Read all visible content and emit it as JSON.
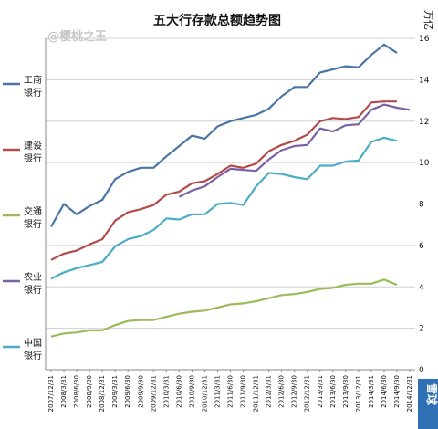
{
  "chart_data": {
    "type": "line",
    "title": "五大行存款总额趋势图",
    "unit": "万亿",
    "ylim": [
      0,
      16
    ],
    "yticks": [
      0,
      2,
      4,
      6,
      8,
      10,
      12,
      14,
      16
    ],
    "grid": true,
    "legend_position": "left",
    "x": [
      "2007/12/31",
      "2008/3/31",
      "2008/6/30",
      "2008/9/30",
      "2008/12/31",
      "2009/3/31",
      "2009/6/30",
      "2009/9/30",
      "2009/12/31",
      "2010/3/31",
      "2010/6/30",
      "2010/9/30",
      "2010/12/31",
      "2011/3/31",
      "2011/6/30",
      "2011/9/30",
      "2011/12/31",
      "2012/3/31",
      "2012/6/30",
      "2012/9/30",
      "2012/12/31",
      "2013/3/31",
      "2013/6/30",
      "2013/9/30",
      "2013/12/31",
      "2014/3/31",
      "2014/6/30",
      "2014/9/30",
      "2014/12/31"
    ],
    "series": [
      {
        "name": "工商\n银行",
        "color": "#4a75a8",
        "values": [
          6.9,
          8.0,
          7.5,
          7.9,
          8.2,
          9.2,
          9.55,
          9.75,
          9.75,
          10.3,
          10.8,
          11.3,
          11.15,
          11.75,
          12.0,
          12.15,
          12.3,
          12.6,
          13.2,
          13.65,
          13.65,
          14.35,
          14.5,
          14.65,
          14.6,
          15.2,
          15.7,
          15.3,
          null
        ]
      },
      {
        "name": "建设\n银行",
        "color": "#b24b4a",
        "values": [
          5.3,
          5.6,
          5.75,
          6.05,
          6.3,
          7.2,
          7.6,
          7.75,
          7.95,
          8.45,
          8.6,
          9.0,
          9.1,
          9.45,
          9.85,
          9.75,
          9.95,
          10.55,
          10.85,
          11.05,
          11.35,
          12.0,
          12.15,
          12.1,
          12.2,
          12.9,
          12.95,
          12.95,
          null
        ]
      },
      {
        "name": "交通\n银行",
        "color": "#9bbb59",
        "values": [
          1.6,
          1.75,
          1.8,
          1.9,
          1.9,
          2.15,
          2.35,
          2.4,
          2.4,
          2.55,
          2.7,
          2.8,
          2.85,
          3.0,
          3.15,
          3.2,
          3.3,
          3.45,
          3.6,
          3.65,
          3.75,
          3.9,
          3.95,
          4.1,
          4.15,
          4.15,
          4.35,
          4.1,
          null
        ]
      },
      {
        "name": "农业\n银行",
        "color": "#7b62a3",
        "values": [
          null,
          null,
          null,
          null,
          null,
          null,
          null,
          null,
          null,
          null,
          8.35,
          8.65,
          8.85,
          9.3,
          9.7,
          9.65,
          9.6,
          10.15,
          10.6,
          10.8,
          10.85,
          11.65,
          11.5,
          11.8,
          11.85,
          12.55,
          12.8,
          12.65,
          12.55
        ]
      },
      {
        "name": "中国\n银行",
        "color": "#4bacc6",
        "values": [
          4.4,
          4.7,
          4.9,
          5.05,
          5.2,
          5.95,
          6.3,
          6.45,
          6.75,
          7.3,
          7.25,
          7.5,
          7.5,
          8.0,
          8.05,
          7.95,
          8.85,
          9.5,
          9.45,
          9.3,
          9.2,
          9.85,
          9.85,
          10.05,
          10.1,
          11.0,
          11.2,
          11.05,
          null
        ]
      }
    ]
  },
  "watermark": "@樱桃之王",
  "corner_badge": "雪球"
}
